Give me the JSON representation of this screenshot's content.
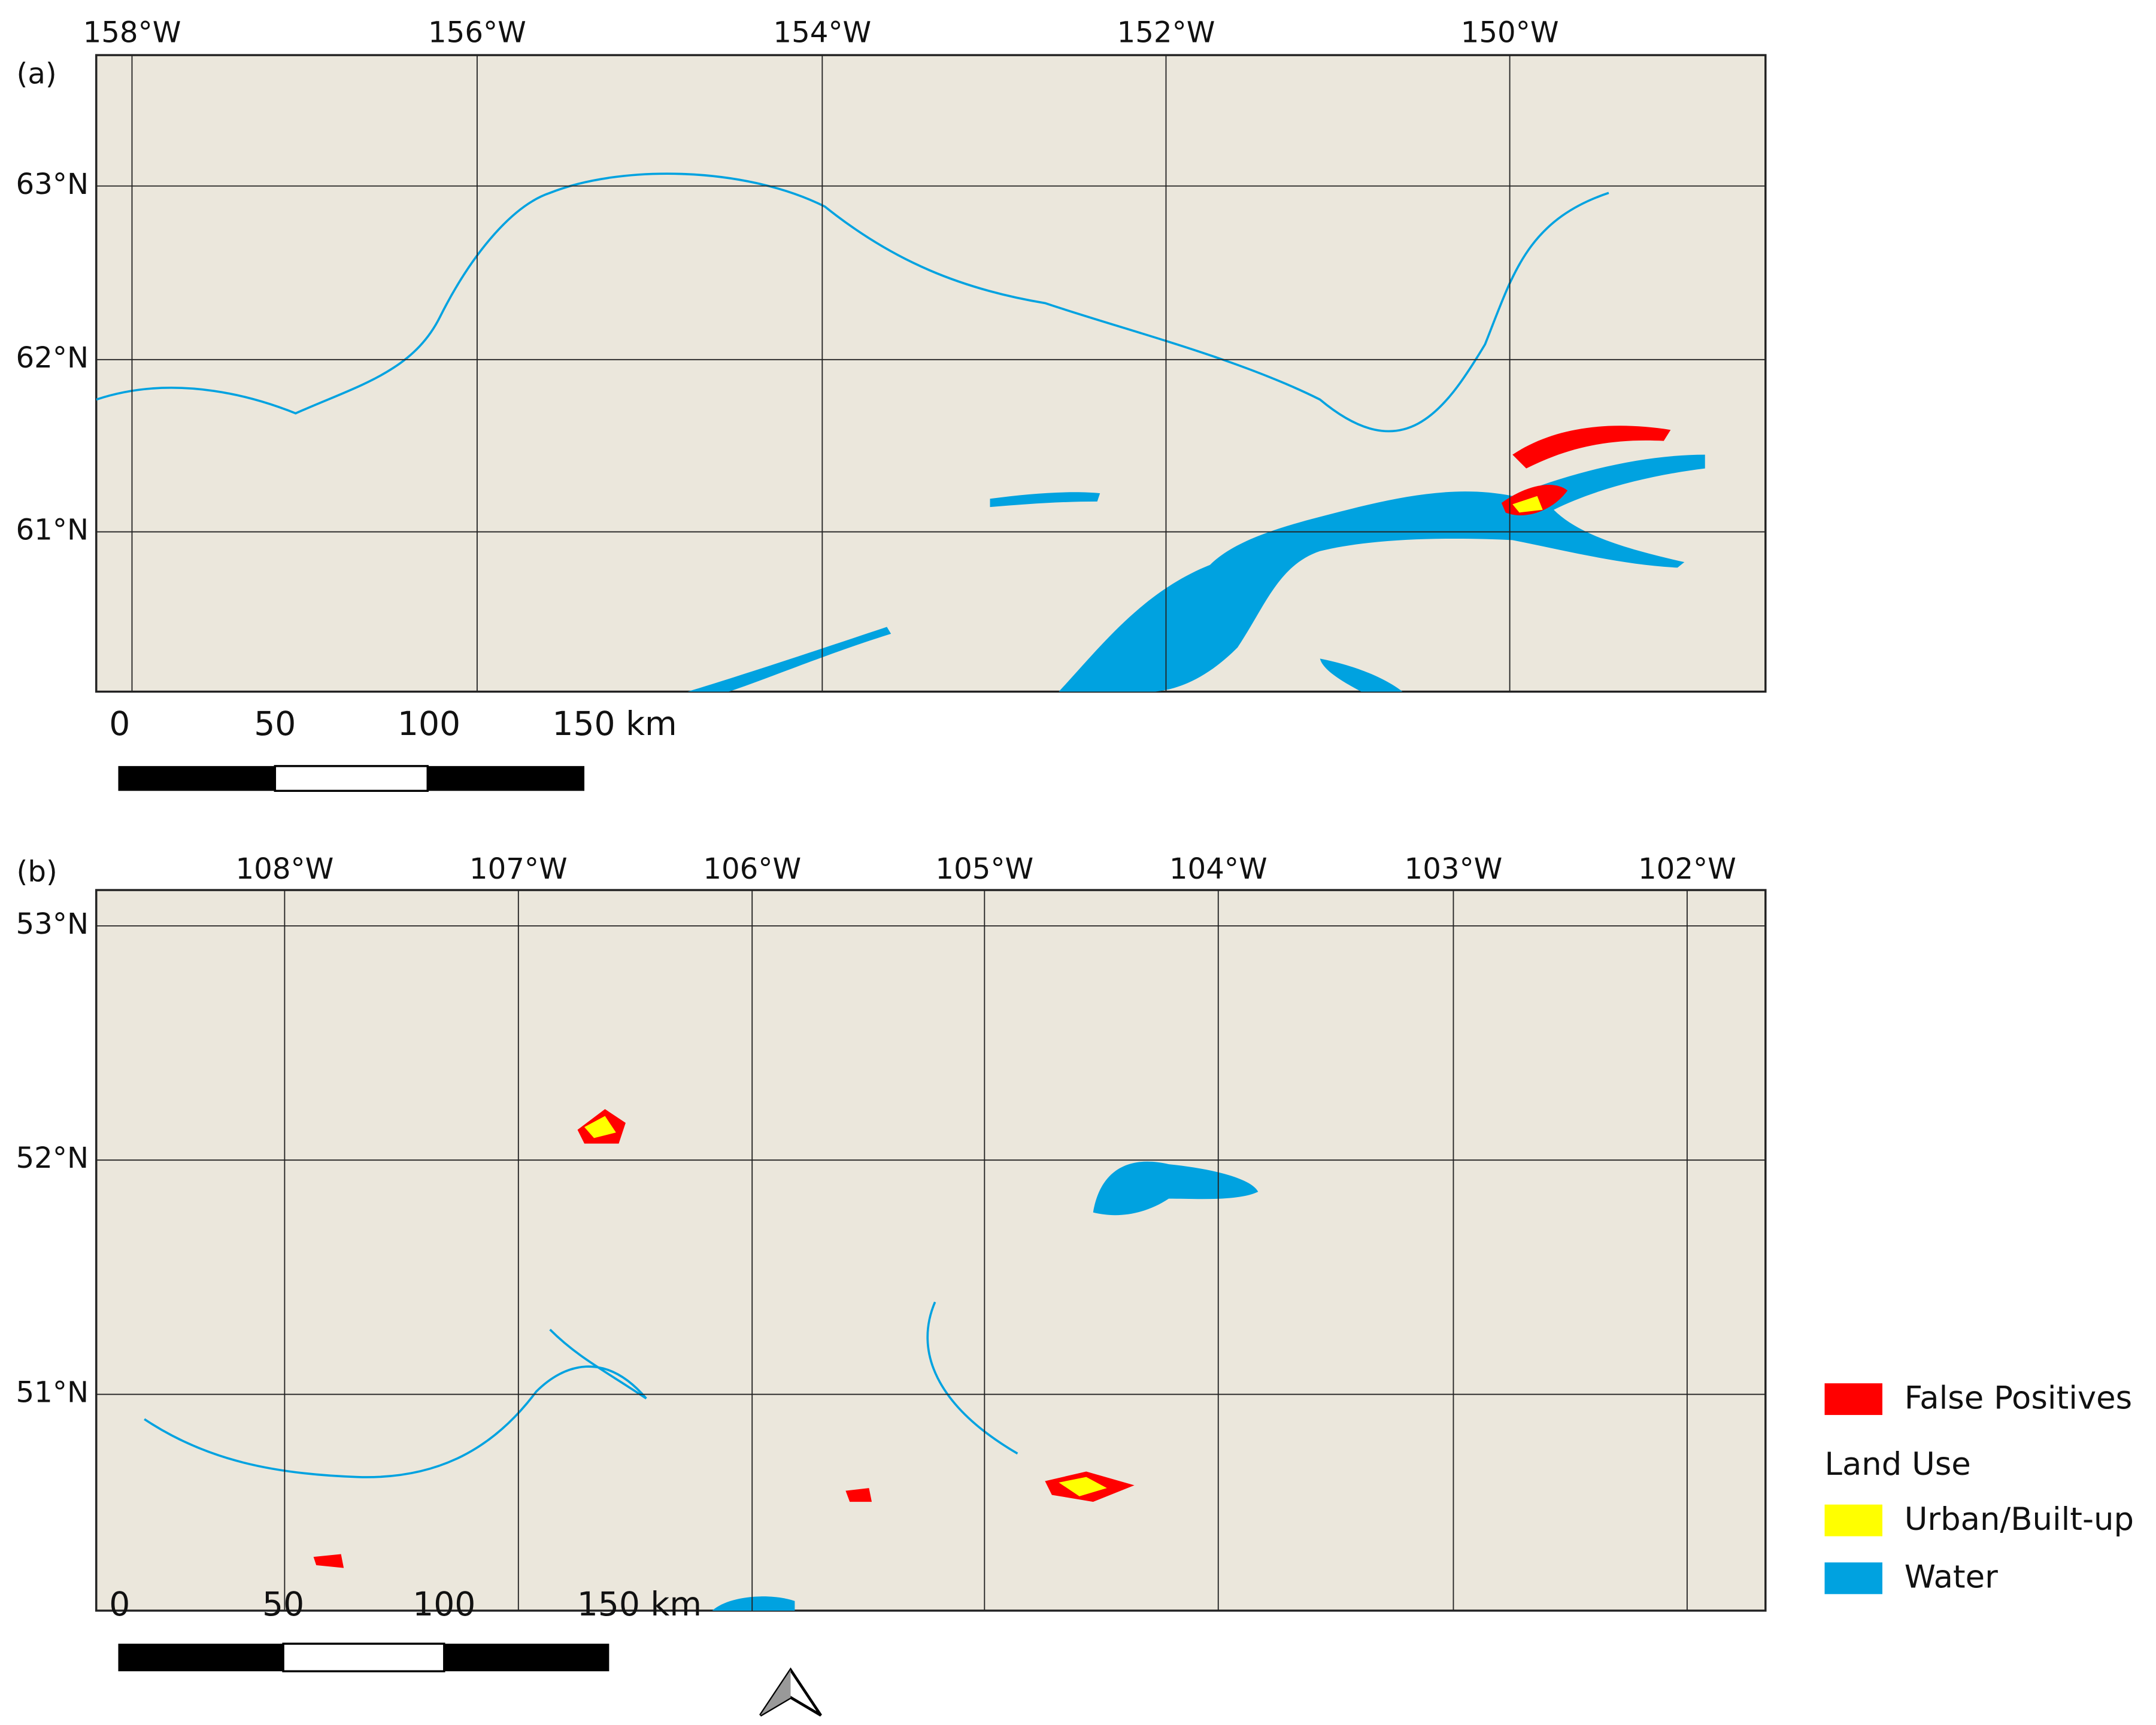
{
  "panels": [
    {
      "label": "(a)",
      "lon_labels": [
        "158°W",
        "156°W",
        "154°W",
        "152°W",
        "150°W"
      ],
      "lat_labels": [
        "63°N",
        "62°N",
        "61°N"
      ],
      "scale_labels": [
        "0",
        "50",
        "100",
        "150 km"
      ]
    },
    {
      "label": "(b)",
      "lon_labels": [
        "108°W",
        "107°W",
        "106°W",
        "105°W",
        "104°W",
        "103°W",
        "102°W"
      ],
      "lat_labels": [
        "53°N",
        "52°N",
        "51°N"
      ],
      "scale_labels": [
        "0",
        "50",
        "100",
        "150 km"
      ]
    }
  ],
  "legend": {
    "items": [
      {
        "label": "False Positives",
        "color": "#ff0000"
      }
    ],
    "heading": "Land Use",
    "land_use": [
      {
        "label": "Urban/Built-up",
        "color": "#ffff00"
      },
      {
        "label": "Water",
        "color": "#00a2e0"
      }
    ]
  }
}
